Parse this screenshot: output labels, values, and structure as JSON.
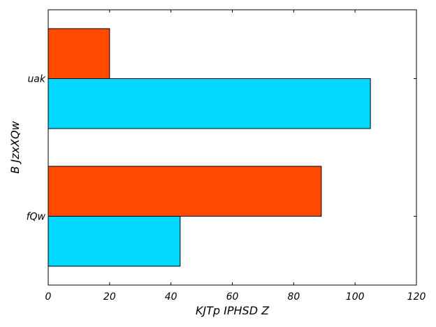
{
  "chart_data": {
    "type": "bar",
    "orientation": "horizontal",
    "title": "",
    "xlabel": "KJTp IPHSD Z",
    "ylabel": "B JzxXQw",
    "categories": [
      "fQw",
      "uak"
    ],
    "series": [
      {
        "values": [
          43,
          105
        ],
        "color": "#00d8ff"
      },
      {
        "values": [
          89,
          20
        ],
        "color": "#ff4a00"
      }
    ],
    "xlim": [
      0,
      120
    ],
    "xticks": [
      0,
      20,
      40,
      60,
      80,
      100,
      120
    ],
    "grid": false,
    "legend": "none"
  }
}
